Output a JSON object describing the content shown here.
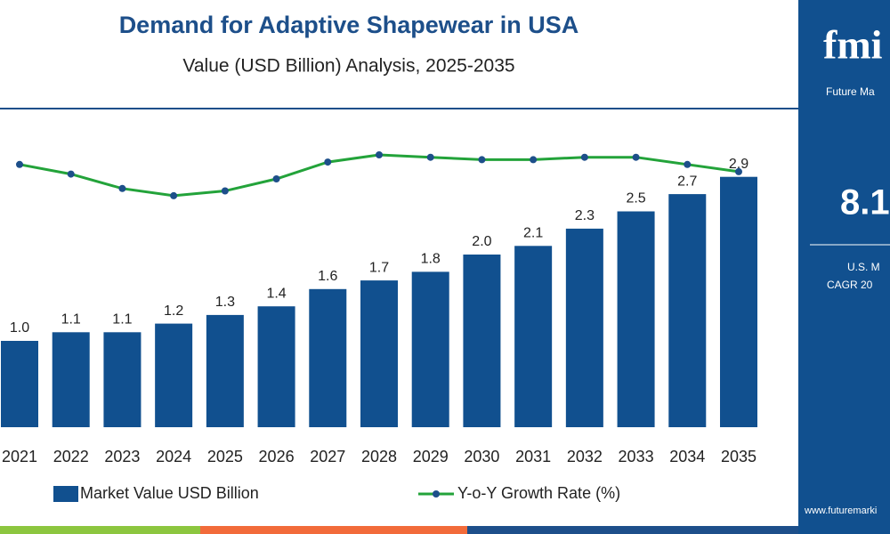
{
  "chart_data": {
    "type": "bar",
    "title": "Demand for Adaptive Shapewear in USA",
    "subtitle": "Value (USD Billion) Analysis, 2025-2035",
    "categories": [
      "2021",
      "2022",
      "2023",
      "2024",
      "2025",
      "2026",
      "2027",
      "2028",
      "2029",
      "2030",
      "2031",
      "2032",
      "2033",
      "2034",
      "2035"
    ],
    "series": [
      {
        "name": "Market Value USD Billion",
        "type": "bar",
        "color": "#11508f",
        "values": [
          1.0,
          1.1,
          1.1,
          1.2,
          1.3,
          1.4,
          1.6,
          1.7,
          1.8,
          2.0,
          2.1,
          2.3,
          2.5,
          2.7,
          2.9
        ],
        "value_labels": [
          "1.0",
          "1.1",
          "1.1",
          "1.2",
          "1.3",
          "1.4",
          "1.6",
          "1.7",
          "1.8",
          "2.0",
          "2.1",
          "2.3",
          "2.5",
          "2.7",
          "2.9"
        ]
      },
      {
        "name": "Y-o-Y Growth Rate (%)",
        "type": "line",
        "color": "#23a33a",
        "values": [
          9.0,
          8.6,
          8.0,
          7.7,
          7.9,
          8.4,
          9.1,
          9.4,
          9.3,
          9.2,
          9.2,
          9.3,
          9.3,
          9.0,
          8.7
        ]
      }
    ]
  },
  "side_panel": {
    "logo": "fmi",
    "brand": "Future Ma",
    "headline": "8.1",
    "line1": "U.S. M",
    "line2": "CAGR 20",
    "website": "www.futuremarki"
  }
}
